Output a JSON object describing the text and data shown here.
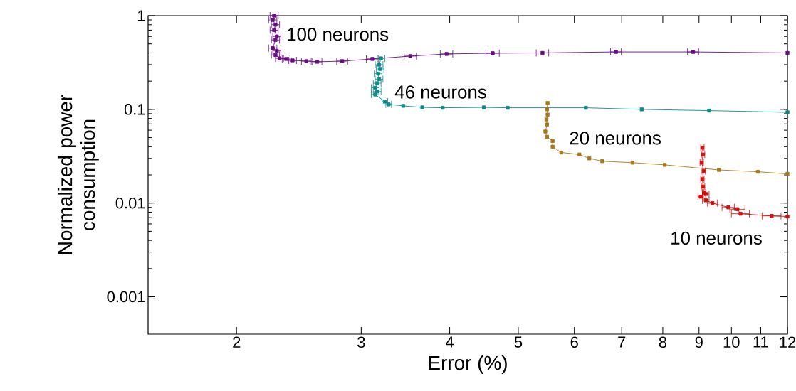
{
  "chart_data": {
    "type": "line",
    "xlabel": "Error (%)",
    "ylabel": "Normalized power consumption",
    "log": "xy",
    "xlim": [
      1.5,
      12
    ],
    "ylim": [
      0.0004,
      1
    ],
    "xticks": [
      2,
      3,
      4,
      5,
      6,
      7,
      8,
      9,
      10,
      11,
      12
    ],
    "yticks": [
      {
        "value": 0.001,
        "label": "0.001"
      },
      {
        "value": 0.01,
        "label": "0.01"
      },
      {
        "value": 0.1,
        "label": "0.1"
      },
      {
        "value": 1,
        "label": "1"
      }
    ],
    "grid": false,
    "legend": false,
    "marker": "square",
    "line_style": "solid",
    "series": [
      {
        "name": "100 neurons",
        "color": "#6a0a84",
        "x": [
          2.26,
          2.25,
          2.27,
          2.26,
          2.28,
          2.27,
          2.25,
          2.28,
          2.27,
          2.3,
          2.35,
          2.4,
          2.51,
          2.6,
          2.82,
          3.11,
          3.52,
          3.96,
          4.6,
          5.41,
          6.87,
          8.83,
          12
        ],
        "values": [
          1.0,
          0.9,
          0.8,
          0.7,
          0.6,
          0.55,
          0.45,
          0.42,
          0.38,
          0.35,
          0.345,
          0.333,
          0.327,
          0.322,
          0.327,
          0.345,
          0.37,
          0.39,
          0.397,
          0.4,
          0.41,
          0.41,
          0.4
        ],
        "xerrors": [
          0.03,
          0.03,
          0.03,
          0.03,
          0.03,
          0.03,
          0.03,
          0.03,
          0.03,
          0.03,
          0.03,
          0.03,
          0.04,
          0.04,
          0.05,
          0.06,
          0.07,
          0.08,
          0.1,
          0.11,
          0.12,
          0.16,
          null
        ]
      },
      {
        "name": "46 neurons",
        "color": "#0e8a88",
        "x": [
          3.2,
          3.18,
          3.19,
          3.17,
          3.18,
          3.16,
          3.14,
          3.16,
          3.14,
          3.24,
          3.28,
          3.44,
          3.66,
          3.91,
          4.47,
          4.83,
          6.23,
          7.47,
          9.3,
          12
        ],
        "values": [
          0.35,
          0.3,
          0.27,
          0.24,
          0.21,
          0.19,
          0.17,
          0.155,
          0.144,
          0.121,
          0.113,
          0.109,
          0.105,
          0.104,
          0.105,
          0.104,
          0.104,
          0.1,
          0.097,
          0.093
        ],
        "xerrors": [
          0.04,
          0.04,
          0.04,
          0.04,
          0.04,
          0.04,
          0.04,
          0.04,
          0.04,
          0.03,
          0.03,
          null,
          null,
          null,
          null,
          null,
          null,
          null,
          null,
          null
        ]
      },
      {
        "name": "20 neurons",
        "color": "#a8781a",
        "x": [
          5.5,
          5.49,
          5.5,
          5.48,
          5.49,
          5.46,
          5.49,
          5.59,
          5.59,
          5.75,
          6.1,
          6.3,
          6.57,
          7.25,
          8.05,
          9.6,
          10.9,
          12
        ],
        "values": [
          0.117,
          0.1,
          0.088,
          0.078,
          0.069,
          0.058,
          0.051,
          0.046,
          0.04,
          0.0347,
          0.033,
          0.03,
          0.028,
          0.027,
          0.0256,
          0.0226,
          0.0216,
          0.0205
        ]
      },
      {
        "name": "10 neurons",
        "color": "#d0100f",
        "x": [
          9.1,
          9.12,
          9.08,
          9.14,
          9.1,
          9.12,
          9.15,
          9.05,
          9.2,
          9.2,
          9.4,
          9.9,
          10.2,
          10.3,
          11.4,
          12
        ],
        "values": [
          0.039,
          0.033,
          0.027,
          0.022,
          0.018,
          0.015,
          0.013,
          0.0117,
          0.0125,
          0.0107,
          0.01,
          0.009,
          0.0086,
          0.0077,
          0.0073,
          0.0072
        ],
        "xerrors": [
          0.05,
          0.05,
          0.05,
          0.05,
          0.05,
          0.05,
          0.05,
          0.08,
          0.1,
          0.1,
          0.15,
          0.2,
          0.25,
          0.3,
          0.35,
          null
        ]
      }
    ]
  }
}
